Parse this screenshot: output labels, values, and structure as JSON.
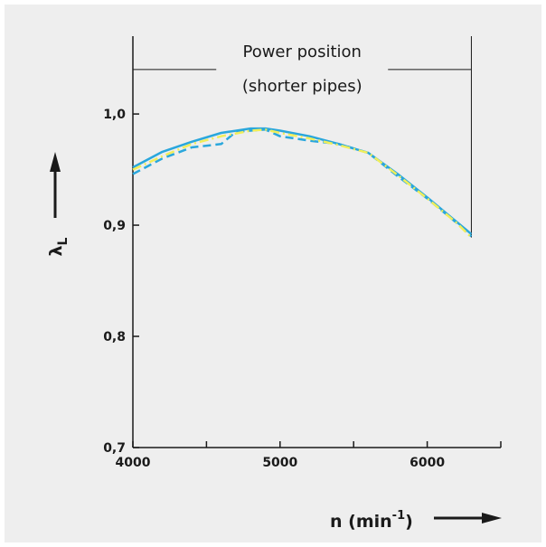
{
  "chart_data": {
    "type": "line",
    "title": "",
    "xlabel": {
      "text": "n (min",
      "superscript": "-1",
      "suffix": ")"
    },
    "ylabel": {
      "text": "λ",
      "subscript": "L"
    },
    "xlim": [
      4000,
      6500
    ],
    "ylim": [
      0.7,
      1.07
    ],
    "x_ticks": [
      4000,
      4500,
      5000,
      5500,
      6000,
      6500
    ],
    "x_tick_labels": [
      {
        "value": 4000,
        "label": "4000"
      },
      {
        "value": 5000,
        "label": "5000"
      },
      {
        "value": 6000,
        "label": "6000"
      }
    ],
    "y_ticks": [
      0.7,
      0.8,
      0.9,
      1.0
    ],
    "y_tick_labels": [
      {
        "value": 0.7,
        "label": "0,7"
      },
      {
        "value": 0.8,
        "label": "0,8"
      },
      {
        "value": 0.9,
        "label": "0,9"
      },
      {
        "value": 1.0,
        "label": "1,0"
      }
    ],
    "grid": false,
    "legend": "none",
    "annotation": {
      "lines": [
        "Power position",
        "(shorter pipes)"
      ],
      "range": [
        4000,
        6300
      ],
      "level": 1.04
    },
    "series": [
      {
        "style": "solid",
        "color": "#2aa7dc",
        "x": [
          4000,
          4200,
          4400,
          4600,
          4800,
          4900,
          5000,
          5200,
          5400,
          5600,
          5800,
          6000,
          6200,
          6300
        ],
        "y": [
          0.952,
          0.966,
          0.975,
          0.983,
          0.987,
          0.987,
          0.985,
          0.98,
          0.973,
          0.965,
          0.946,
          0.925,
          0.903,
          0.892
        ]
      },
      {
        "style": "dashed",
        "color": "#2aa7dc",
        "x": [
          4000,
          4200,
          4400,
          4600,
          4700,
          4800,
          4900,
          5000,
          5200,
          5400,
          5600,
          5800,
          6000,
          6200,
          6300
        ],
        "y": [
          0.946,
          0.96,
          0.97,
          0.973,
          0.984,
          0.985,
          0.986,
          0.98,
          0.976,
          0.973,
          0.965,
          0.944,
          0.924,
          0.902,
          0.89
        ]
      },
      {
        "style": "dash-dot",
        "color": "#f1ee5a",
        "x": [
          4000,
          4200,
          4400,
          4600,
          4800,
          4900,
          5000,
          5200,
          5400,
          5600,
          5800,
          6000,
          6200,
          6300
        ],
        "y": [
          0.95,
          0.962,
          0.973,
          0.98,
          0.985,
          0.986,
          0.983,
          0.978,
          0.972,
          0.965,
          0.945,
          0.924,
          0.902,
          0.889
        ]
      }
    ]
  }
}
